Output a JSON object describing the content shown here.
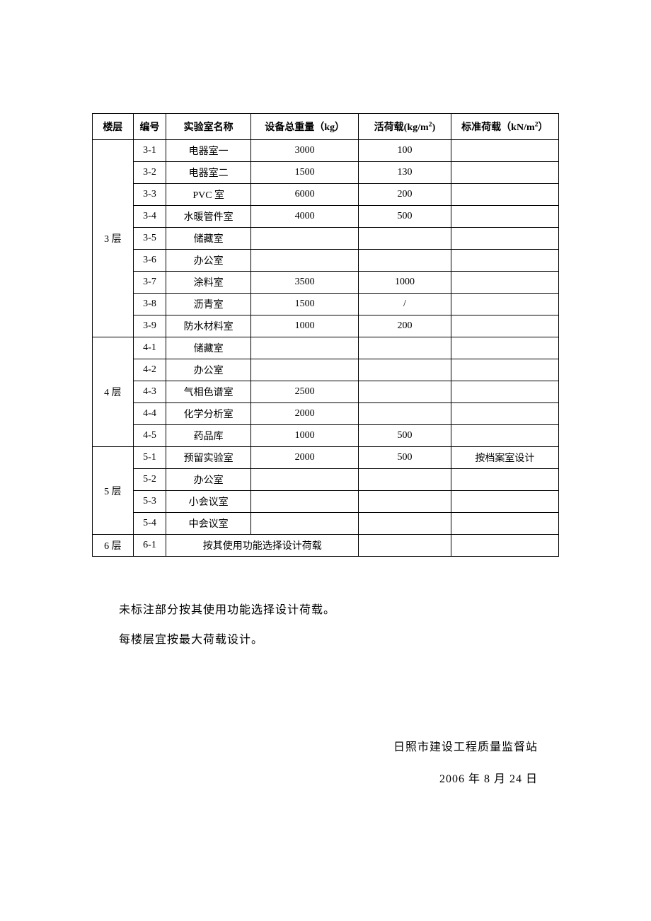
{
  "table": {
    "headers": {
      "floor": "楼层",
      "id": "编号",
      "name": "实验室名称",
      "weight": "设备总重量（kg）",
      "live_load": "活荷载(kg/m²)",
      "std_load": "标准荷载（kN/m²）"
    },
    "floors": [
      {
        "label": "3 层",
        "rows": [
          {
            "id": "3-1",
            "name": "电器室一",
            "weight": "3000",
            "live": "100",
            "std": ""
          },
          {
            "id": "3-2",
            "name": "电器室二",
            "weight": "1500",
            "live": "130",
            "std": ""
          },
          {
            "id": "3-3",
            "name": "PVC 室",
            "weight": "6000",
            "live": "200",
            "std": ""
          },
          {
            "id": "3-4",
            "name": "水暖管件室",
            "weight": "4000",
            "live": "500",
            "std": ""
          },
          {
            "id": "3-5",
            "name": "储藏室",
            "weight": "",
            "live": "",
            "std": ""
          },
          {
            "id": "3-6",
            "name": "办公室",
            "weight": "",
            "live": "",
            "std": ""
          },
          {
            "id": "3-7",
            "name": "涂料室",
            "weight": "3500",
            "live": "1000",
            "std": ""
          },
          {
            "id": "3-8",
            "name": "沥青室",
            "weight": "1500",
            "live": "/",
            "std": ""
          },
          {
            "id": "3-9",
            "name": "防水材料室",
            "weight": "1000",
            "live": "200",
            "std": ""
          }
        ]
      },
      {
        "label": "4 层",
        "rows": [
          {
            "id": "4-1",
            "name": "储藏室",
            "weight": "",
            "live": "",
            "std": ""
          },
          {
            "id": "4-2",
            "name": "办公室",
            "weight": "",
            "live": "",
            "std": ""
          },
          {
            "id": "4-3",
            "name": "气相色谱室",
            "weight": "2500",
            "live": "",
            "std": ""
          },
          {
            "id": "4-4",
            "name": "化学分析室",
            "weight": "2000",
            "live": "",
            "std": ""
          },
          {
            "id": "4-5",
            "name": "药品库",
            "weight": "1000",
            "live": "500",
            "std": ""
          }
        ]
      },
      {
        "label": "5 层",
        "rows": [
          {
            "id": "5-1",
            "name": "预留实验室",
            "weight": "2000",
            "live": "500",
            "std": "按档案室设计"
          },
          {
            "id": "5-2",
            "name": "办公室",
            "weight": "",
            "live": "",
            "std": ""
          },
          {
            "id": "5-3",
            "name": "小会议室",
            "weight": "",
            "live": "",
            "std": ""
          },
          {
            "id": "5-4",
            "name": "中会议室",
            "weight": "",
            "live": "",
            "std": ""
          }
        ]
      },
      {
        "label": "6 层",
        "special": {
          "id": "6-1",
          "merged_text": "按其使用功能选择设计荷载",
          "live": "",
          "std": ""
        }
      }
    ]
  },
  "notes": {
    "line1": "未标注部分按其使用功能选择设计荷载。",
    "line2": "每楼层宜按最大荷载设计。"
  },
  "signature": {
    "org": "日照市建设工程质量监督站",
    "date": "2006 年 8 月 24 日"
  },
  "styling": {
    "background_color": "#ffffff",
    "border_color": "#000000",
    "text_color": "#000000",
    "header_fontsize": 14,
    "cell_fontsize": 14,
    "notes_fontsize": 16,
    "font_family": "SimSun"
  }
}
